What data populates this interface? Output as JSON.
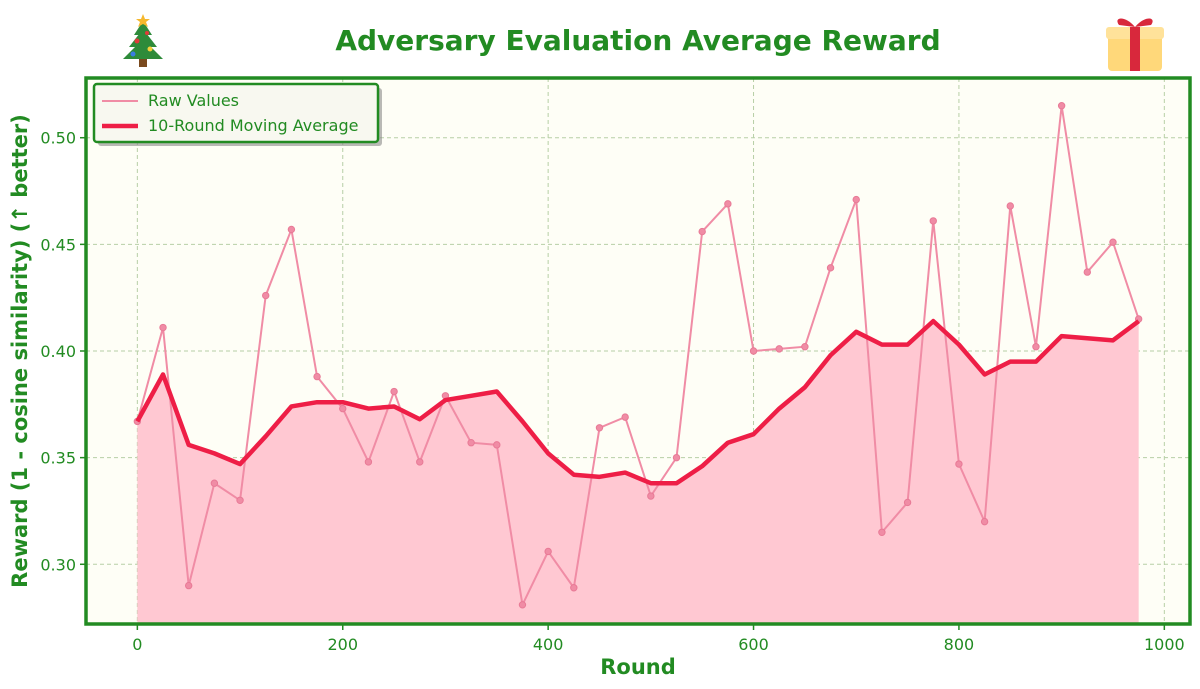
{
  "chart_data": {
    "type": "line",
    "title": "Adversary Evaluation Average Reward",
    "xlabel": "Round",
    "ylabel": "Reward (1 - cosine similarity) (↑ better)",
    "xlim": [
      -50,
      1025
    ],
    "ylim": [
      0.272,
      0.528
    ],
    "xticks": [
      0,
      200,
      400,
      600,
      800,
      1000
    ],
    "yticks": [
      0.3,
      0.35,
      0.4,
      0.45,
      0.5
    ],
    "grid": true,
    "legend_position": "top-left",
    "decorations": {
      "left_icon": "christmas-tree-icon",
      "right_icon": "gift-icon"
    },
    "colors": {
      "accent": "#228b22",
      "raw_line": "#f08ca5",
      "moving_average": "#ee1e46",
      "fill": "#ffc8d2",
      "plot_background": "#fefef6"
    },
    "x": [
      0,
      25,
      50,
      75,
      100,
      125,
      150,
      175,
      200,
      225,
      250,
      275,
      300,
      325,
      350,
      375,
      400,
      425,
      450,
      475,
      500,
      525,
      550,
      575,
      600,
      625,
      650,
      675,
      700,
      725,
      750,
      775,
      800,
      825,
      850,
      875,
      900,
      925,
      950,
      975
    ],
    "series": [
      {
        "name": "Raw Values",
        "values": [
          0.367,
          0.411,
          0.29,
          0.338,
          0.33,
          0.426,
          0.457,
          0.388,
          0.373,
          0.348,
          0.381,
          0.348,
          0.379,
          0.357,
          0.356,
          0.281,
          0.306,
          0.289,
          0.364,
          0.369,
          0.332,
          0.35,
          0.456,
          0.469,
          0.4,
          0.401,
          0.402,
          0.439,
          0.471,
          0.315,
          0.329,
          0.461,
          0.347,
          0.32,
          0.468,
          0.402,
          0.515,
          0.437,
          0.451,
          0.415
        ]
      },
      {
        "name": "10-Round Moving Average",
        "values": [
          0.367,
          0.389,
          0.356,
          0.352,
          0.347,
          0.36,
          0.374,
          0.376,
          0.376,
          0.373,
          0.374,
          0.368,
          0.377,
          0.379,
          0.381,
          0.367,
          0.352,
          0.342,
          0.341,
          0.343,
          0.338,
          0.338,
          0.346,
          0.357,
          0.361,
          0.373,
          0.383,
          0.398,
          0.409,
          0.403,
          0.403,
          0.414,
          0.403,
          0.389,
          0.395,
          0.395,
          0.407,
          0.406,
          0.405,
          0.414
        ]
      }
    ]
  }
}
